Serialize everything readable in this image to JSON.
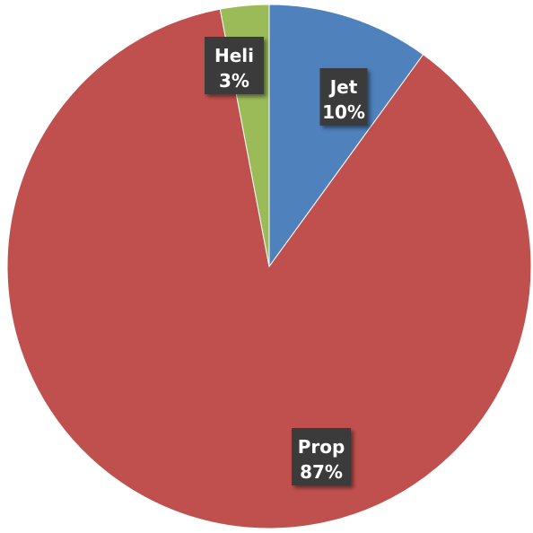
{
  "chart_data": {
    "type": "pie",
    "title": "",
    "legend": false,
    "start_angle_deg": -90,
    "direction": "clockwise",
    "slices": [
      {
        "label": "Jet",
        "value": 10,
        "percent_label": "10%",
        "color": "#4F81BD"
      },
      {
        "label": "Prop",
        "value": 87,
        "percent_label": "87%",
        "color": "#C0504D"
      },
      {
        "label": "Heli",
        "value": 3,
        "percent_label": "3%",
        "color": "#9BBB59"
      }
    ]
  }
}
